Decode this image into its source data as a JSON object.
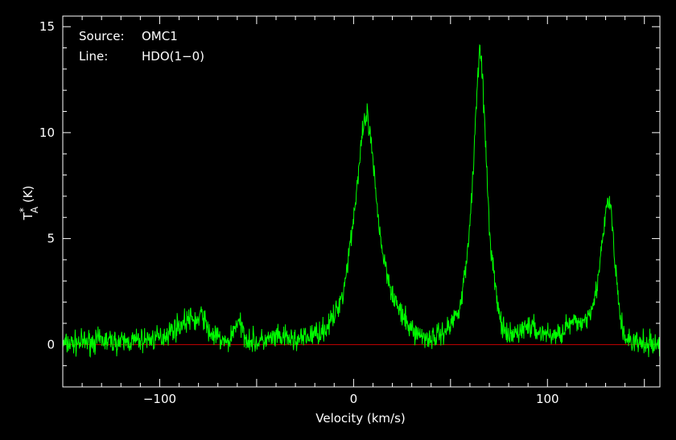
{
  "chart_data": {
    "type": "line",
    "xlabel": "Velocity (km/s)",
    "ylabel_main": "T",
    "ylabel_sub": "A",
    "ylabel_sup": "*",
    "ylabel_unit": " (K)",
    "xlim": [
      -150,
      158
    ],
    "ylim": [
      -2,
      15.5
    ],
    "x_ticks": [
      -100,
      0,
      100
    ],
    "x_tick_labels": [
      "−100",
      "0",
      "100"
    ],
    "y_ticks": [
      0,
      5,
      10,
      15
    ],
    "y_tick_labels": [
      "0",
      "5",
      "10",
      "15"
    ],
    "grid": false,
    "annotation": {
      "source_label": "Source:",
      "source_value": "OMC1",
      "line_label": "Line:",
      "line_value": "HDO(1−0)"
    },
    "baseline": 0,
    "series": [
      {
        "x": [
          -150,
          -140,
          -130,
          -120,
          -110,
          -100,
          -95,
          -90,
          -85,
          -80,
          -78,
          -75,
          -70,
          -65,
          -60,
          -58,
          -55,
          -50,
          -45,
          -40,
          -35,
          -30,
          -25,
          -20,
          -15,
          -10,
          -5,
          0,
          3,
          5,
          7,
          9,
          12,
          15,
          20,
          25,
          30,
          35,
          40,
          45,
          50,
          55,
          58,
          61,
          63,
          65,
          66,
          68,
          70,
          73,
          75,
          78,
          80,
          85,
          90,
          95,
          100,
          105,
          110,
          115,
          120,
          125,
          128,
          131,
          133,
          135,
          138,
          140,
          145,
          150,
          158
        ],
        "values": [
          0,
          0.1,
          0.2,
          0.1,
          0.2,
          0.3,
          0.6,
          0.9,
          1.2,
          1.1,
          1.5,
          0.6,
          0.3,
          0,
          1.1,
          0.8,
          0.3,
          0.1,
          0.2,
          0.3,
          0.3,
          0.2,
          0.3,
          0.5,
          0.7,
          1.3,
          2.6,
          6.0,
          8.5,
          10.2,
          10.8,
          9.5,
          6.6,
          4.3,
          2.4,
          1.3,
          0.7,
          0.4,
          0.3,
          0.5,
          0.9,
          1.9,
          3.6,
          7.0,
          10.8,
          14.3,
          13.5,
          9.6,
          5.4,
          2.8,
          1.4,
          0.5,
          0.3,
          0.6,
          0.9,
          0.6,
          0.5,
          0.4,
          0.9,
          1.0,
          1.2,
          2.4,
          4.5,
          6.8,
          6.3,
          3.5,
          1.0,
          0.3,
          0.1,
          0,
          0
        ]
      }
    ],
    "colors": {
      "background": "#000000",
      "frame": "#ffffff",
      "spectrum": "#00ff00",
      "baseline": "#cc0000",
      "text": "#ffffff"
    }
  }
}
